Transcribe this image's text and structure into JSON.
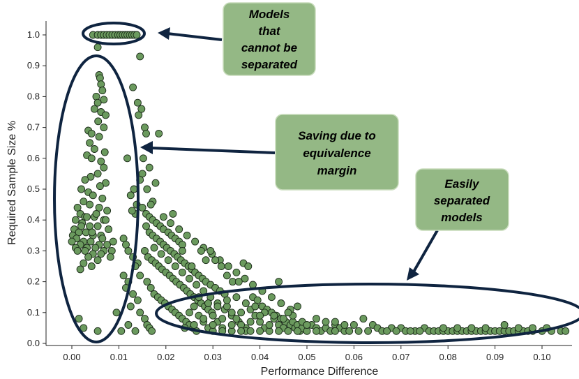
{
  "chart_data": {
    "type": "scatter",
    "title": "",
    "xlabel": "Performance Difference",
    "ylabel": "Required Sample Size %",
    "xlim": [
      -0.005,
      0.106
    ],
    "ylim": [
      -0.005,
      1.04
    ],
    "x_ticks": [
      "0.00",
      "0.01",
      "0.02",
      "0.03",
      "0.04",
      "0.05",
      "0.06",
      "0.07",
      "0.08",
      "0.09",
      "0.10"
    ],
    "y_ticks": [
      "0.0",
      "0.1",
      "0.2",
      "0.3",
      "0.4",
      "0.5",
      "0.6",
      "0.7",
      "0.8",
      "0.9",
      "1.0"
    ],
    "grid": false,
    "marker_color": "#6b9a5e",
    "marker_edge_color": "#1a2a18",
    "points": [
      [
        0.0045,
        1.0
      ],
      [
        0.0055,
        1.0
      ],
      [
        0.0062,
        1.0
      ],
      [
        0.0068,
        1.0
      ],
      [
        0.0074,
        1.0
      ],
      [
        0.008,
        1.0
      ],
      [
        0.0086,
        1.0
      ],
      [
        0.0092,
        1.0
      ],
      [
        0.0098,
        1.0
      ],
      [
        0.0103,
        1.0
      ],
      [
        0.0108,
        1.0
      ],
      [
        0.0113,
        1.0
      ],
      [
        0.0118,
        1.0
      ],
      [
        0.0123,
        1.0
      ],
      [
        0.0128,
        1.0
      ],
      [
        0.0133,
        1.0
      ],
      [
        0.0138,
        1.0
      ],
      [
        0.0055,
        0.96
      ],
      [
        0.0145,
        0.93
      ],
      [
        0.0058,
        0.87
      ],
      [
        0.006,
        0.86
      ],
      [
        0.0062,
        0.84
      ],
      [
        0.0065,
        0.82
      ],
      [
        0.0052,
        0.8
      ],
      [
        0.0068,
        0.79
      ],
      [
        0.0055,
        0.78
      ],
      [
        0.0048,
        0.76
      ],
      [
        0.0062,
        0.75
      ],
      [
        0.0072,
        0.74
      ],
      [
        0.0056,
        0.72
      ],
      [
        0.0068,
        0.7
      ],
      [
        0.0035,
        0.69
      ],
      [
        0.0042,
        0.68
      ],
      [
        0.0058,
        0.67
      ],
      [
        0.0038,
        0.65
      ],
      [
        0.0048,
        0.63
      ],
      [
        0.007,
        0.62
      ],
      [
        0.0032,
        0.61
      ],
      [
        0.0042,
        0.6
      ],
      [
        0.0062,
        0.59
      ],
      [
        0.0068,
        0.57
      ],
      [
        0.0055,
        0.55
      ],
      [
        0.004,
        0.54
      ],
      [
        0.0028,
        0.53
      ],
      [
        0.0072,
        0.52
      ],
      [
        0.006,
        0.51
      ],
      [
        0.002,
        0.5
      ],
      [
        0.0035,
        0.49
      ],
      [
        0.0045,
        0.48
      ],
      [
        0.0065,
        0.47
      ],
      [
        0.0025,
        0.46
      ],
      [
        0.0038,
        0.45
      ],
      [
        0.0058,
        0.44
      ],
      [
        0.0075,
        0.43
      ],
      [
        0.0012,
        0.44
      ],
      [
        0.0018,
        0.42
      ],
      [
        0.0028,
        0.41
      ],
      [
        0.0048,
        0.41
      ],
      [
        0.0068,
        0.4
      ],
      [
        0.0008,
        0.4
      ],
      [
        0.0022,
        0.39
      ],
      [
        0.0038,
        0.38
      ],
      [
        0.0055,
        0.38
      ],
      [
        0.0078,
        0.37
      ],
      [
        0.0005,
        0.37
      ],
      [
        0.0015,
        0.36
      ],
      [
        0.003,
        0.36
      ],
      [
        0.0045,
        0.35
      ],
      [
        0.0062,
        0.35
      ],
      [
        0.0002,
        0.35
      ],
      [
        0.001,
        0.34
      ],
      [
        0.0025,
        0.33
      ],
      [
        0.004,
        0.33
      ],
      [
        0.0058,
        0.32
      ],
      [
        0.0075,
        0.32
      ],
      [
        0.0,
        0.33
      ],
      [
        0.0018,
        0.32
      ],
      [
        0.0032,
        0.31
      ],
      [
        0.005,
        0.31
      ],
      [
        0.0068,
        0.3
      ],
      [
        0.0085,
        0.3
      ],
      [
        0.0008,
        0.31
      ],
      [
        0.0028,
        0.3
      ],
      [
        0.0045,
        0.29
      ],
      [
        0.0062,
        0.29
      ],
      [
        0.0082,
        0.28
      ],
      [
        0.0035,
        0.28
      ],
      [
        0.0055,
        0.27
      ],
      [
        0.0025,
        0.26
      ],
      [
        0.0042,
        0.25
      ],
      [
        0.0018,
        0.24
      ],
      [
        0.0032,
        0.41
      ],
      [
        0.0052,
        0.42
      ],
      [
        0.0072,
        0.4
      ],
      [
        0.002,
        0.38
      ],
      [
        0.0043,
        0.36
      ],
      [
        0.0065,
        0.34
      ],
      [
        0.0088,
        0.33
      ],
      [
        0.0012,
        0.3
      ],
      [
        0.0015,
        0.08
      ],
      [
        0.0025,
        0.05
      ],
      [
        0.0055,
        0.04
      ],
      [
        0.0095,
        0.1
      ],
      [
        0.012,
        0.06
      ],
      [
        0.0105,
        0.04
      ],
      [
        0.0118,
        0.6
      ],
      [
        0.0125,
        0.48
      ],
      [
        0.0135,
        0.42
      ],
      [
        0.0142,
        0.74
      ],
      [
        0.0148,
        0.76
      ],
      [
        0.013,
        0.83
      ],
      [
        0.014,
        0.78
      ],
      [
        0.0155,
        0.7
      ],
      [
        0.0158,
        0.68
      ],
      [
        0.0152,
        0.6
      ],
      [
        0.0165,
        0.57
      ],
      [
        0.015,
        0.55
      ],
      [
        0.0145,
        0.53
      ],
      [
        0.016,
        0.5
      ],
      [
        0.0132,
        0.5
      ],
      [
        0.0172,
        0.46
      ],
      [
        0.0138,
        0.45
      ],
      [
        0.0128,
        0.43
      ],
      [
        0.0185,
        0.68
      ],
      [
        0.0178,
        0.52
      ],
      [
        0.0168,
        0.45
      ],
      [
        0.011,
        0.34
      ],
      [
        0.0115,
        0.32
      ],
      [
        0.012,
        0.3
      ],
      [
        0.013,
        0.28
      ],
      [
        0.014,
        0.26
      ],
      [
        0.0135,
        0.25
      ],
      [
        0.0145,
        0.22
      ],
      [
        0.011,
        0.22
      ],
      [
        0.012,
        0.2
      ],
      [
        0.0115,
        0.18
      ],
      [
        0.013,
        0.16
      ],
      [
        0.014,
        0.14
      ],
      [
        0.0125,
        0.12
      ],
      [
        0.0145,
        0.1
      ],
      [
        0.0155,
        0.08
      ],
      [
        0.016,
        0.06
      ],
      [
        0.0165,
        0.05
      ],
      [
        0.017,
        0.04
      ],
      [
        0.0135,
        0.04
      ],
      [
        0.015,
        0.44
      ],
      [
        0.0158,
        0.42
      ],
      [
        0.0165,
        0.41
      ],
      [
        0.0172,
        0.4
      ],
      [
        0.018,
        0.39
      ],
      [
        0.0188,
        0.38
      ],
      [
        0.0195,
        0.37
      ],
      [
        0.0205,
        0.36
      ],
      [
        0.0212,
        0.35
      ],
      [
        0.022,
        0.34
      ],
      [
        0.0228,
        0.33
      ],
      [
        0.0235,
        0.32
      ],
      [
        0.0158,
        0.38
      ],
      [
        0.0165,
        0.36
      ],
      [
        0.0172,
        0.35
      ],
      [
        0.018,
        0.34
      ],
      [
        0.0188,
        0.33
      ],
      [
        0.0195,
        0.32
      ],
      [
        0.0202,
        0.31
      ],
      [
        0.021,
        0.3
      ],
      [
        0.0218,
        0.29
      ],
      [
        0.0225,
        0.28
      ],
      [
        0.0232,
        0.27
      ],
      [
        0.024,
        0.26
      ],
      [
        0.0248,
        0.25
      ],
      [
        0.0255,
        0.24
      ],
      [
        0.0262,
        0.23
      ],
      [
        0.027,
        0.22
      ],
      [
        0.0278,
        0.21
      ],
      [
        0.0285,
        0.2
      ],
      [
        0.0295,
        0.19
      ],
      [
        0.0305,
        0.18
      ],
      [
        0.0315,
        0.17
      ],
      [
        0.0325,
        0.16
      ],
      [
        0.0155,
        0.3
      ],
      [
        0.0162,
        0.28
      ],
      [
        0.017,
        0.27
      ],
      [
        0.0178,
        0.26
      ],
      [
        0.0185,
        0.25
      ],
      [
        0.0192,
        0.24
      ],
      [
        0.02,
        0.23
      ],
      [
        0.0208,
        0.22
      ],
      [
        0.0215,
        0.21
      ],
      [
        0.0222,
        0.2
      ],
      [
        0.023,
        0.19
      ],
      [
        0.0238,
        0.18
      ],
      [
        0.0245,
        0.17
      ],
      [
        0.0252,
        0.16
      ],
      [
        0.026,
        0.15
      ],
      [
        0.0268,
        0.14
      ],
      [
        0.0275,
        0.13
      ],
      [
        0.0283,
        0.12
      ],
      [
        0.029,
        0.11
      ],
      [
        0.0298,
        0.1
      ],
      [
        0.016,
        0.2
      ],
      [
        0.0168,
        0.18
      ],
      [
        0.0175,
        0.16
      ],
      [
        0.0183,
        0.15
      ],
      [
        0.019,
        0.14
      ],
      [
        0.0198,
        0.13
      ],
      [
        0.0205,
        0.12
      ],
      [
        0.0213,
        0.11
      ],
      [
        0.022,
        0.1
      ],
      [
        0.0228,
        0.09
      ],
      [
        0.0235,
        0.08
      ],
      [
        0.0243,
        0.07
      ],
      [
        0.025,
        0.06
      ],
      [
        0.0258,
        0.05
      ],
      [
        0.0265,
        0.04
      ],
      [
        0.0175,
        0.31
      ],
      [
        0.019,
        0.29
      ],
      [
        0.0205,
        0.27
      ],
      [
        0.022,
        0.25
      ],
      [
        0.0235,
        0.23
      ],
      [
        0.025,
        0.21
      ],
      [
        0.0265,
        0.19
      ],
      [
        0.028,
        0.17
      ],
      [
        0.0295,
        0.15
      ],
      [
        0.031,
        0.13
      ],
      [
        0.0325,
        0.11
      ],
      [
        0.034,
        0.09
      ],
      [
        0.0355,
        0.07
      ],
      [
        0.037,
        0.05
      ],
      [
        0.0195,
        0.41
      ],
      [
        0.021,
        0.39
      ],
      [
        0.0228,
        0.37
      ],
      [
        0.0245,
        0.35
      ],
      [
        0.0262,
        0.33
      ],
      [
        0.028,
        0.31
      ],
      [
        0.0298,
        0.29
      ],
      [
        0.0315,
        0.27
      ],
      [
        0.0333,
        0.25
      ],
      [
        0.035,
        0.23
      ],
      [
        0.0368,
        0.21
      ],
      [
        0.0385,
        0.19
      ],
      [
        0.0405,
        0.17
      ],
      [
        0.0425,
        0.15
      ],
      [
        0.0445,
        0.13
      ],
      [
        0.0465,
        0.11
      ],
      [
        0.0215,
        0.42
      ],
      [
        0.0235,
        0.3
      ],
      [
        0.0255,
        0.25
      ],
      [
        0.0275,
        0.3
      ],
      [
        0.0285,
        0.27
      ],
      [
        0.0295,
        0.3
      ],
      [
        0.0305,
        0.27
      ],
      [
        0.0318,
        0.25
      ],
      [
        0.033,
        0.22
      ],
      [
        0.0342,
        0.2
      ],
      [
        0.0355,
        0.2
      ],
      [
        0.0365,
        0.26
      ],
      [
        0.0375,
        0.25
      ],
      [
        0.0385,
        0.15
      ],
      [
        0.0395,
        0.14
      ],
      [
        0.0405,
        0.12
      ],
      [
        0.0415,
        0.11
      ],
      [
        0.0425,
        0.1
      ],
      [
        0.0435,
        0.09
      ],
      [
        0.0445,
        0.08
      ],
      [
        0.0455,
        0.07
      ],
      [
        0.0465,
        0.06
      ],
      [
        0.0475,
        0.05
      ],
      [
        0.0485,
        0.04
      ],
      [
        0.025,
        0.1
      ],
      [
        0.026,
        0.12
      ],
      [
        0.027,
        0.09
      ],
      [
        0.028,
        0.07
      ],
      [
        0.029,
        0.05
      ],
      [
        0.03,
        0.09
      ],
      [
        0.031,
        0.07
      ],
      [
        0.032,
        0.05
      ],
      [
        0.033,
        0.12
      ],
      [
        0.034,
        0.1
      ],
      [
        0.035,
        0.08
      ],
      [
        0.036,
        0.06
      ],
      [
        0.037,
        0.04
      ],
      [
        0.038,
        0.11
      ],
      [
        0.039,
        0.09
      ],
      [
        0.04,
        0.07
      ],
      [
        0.041,
        0.05
      ],
      [
        0.042,
        0.04
      ],
      [
        0.043,
        0.08
      ],
      [
        0.044,
        0.06
      ],
      [
        0.045,
        0.05
      ],
      [
        0.046,
        0.04
      ],
      [
        0.047,
        0.07
      ],
      [
        0.048,
        0.06
      ],
      [
        0.049,
        0.05
      ],
      [
        0.05,
        0.04
      ],
      [
        0.051,
        0.06
      ],
      [
        0.052,
        0.05
      ],
      [
        0.053,
        0.04
      ],
      [
        0.054,
        0.05
      ],
      [
        0.055,
        0.04
      ],
      [
        0.056,
        0.06
      ],
      [
        0.057,
        0.05
      ],
      [
        0.058,
        0.04
      ],
      [
        0.044,
        0.2
      ],
      [
        0.048,
        0.12
      ],
      [
        0.052,
        0.08
      ],
      [
        0.056,
        0.07
      ],
      [
        0.06,
        0.06
      ],
      [
        0.062,
        0.08
      ],
      [
        0.064,
        0.06
      ],
      [
        0.065,
        0.05
      ],
      [
        0.068,
        0.05
      ],
      [
        0.07,
        0.05
      ],
      [
        0.073,
        0.04
      ],
      [
        0.075,
        0.05
      ],
      [
        0.03,
        0.04
      ],
      [
        0.032,
        0.04
      ],
      [
        0.034,
        0.04
      ],
      [
        0.036,
        0.04
      ],
      [
        0.038,
        0.04
      ],
      [
        0.04,
        0.04
      ],
      [
        0.044,
        0.04
      ],
      [
        0.048,
        0.04
      ],
      [
        0.052,
        0.04
      ],
      [
        0.056,
        0.04
      ],
      [
        0.059,
        0.04
      ],
      [
        0.061,
        0.04
      ],
      [
        0.063,
        0.04
      ],
      [
        0.066,
        0.04
      ],
      [
        0.067,
        0.04
      ],
      [
        0.069,
        0.04
      ],
      [
        0.071,
        0.04
      ],
      [
        0.072,
        0.04
      ],
      [
        0.074,
        0.04
      ],
      [
        0.076,
        0.04
      ],
      [
        0.077,
        0.04
      ],
      [
        0.078,
        0.04
      ],
      [
        0.079,
        0.04
      ],
      [
        0.08,
        0.04
      ],
      [
        0.081,
        0.04
      ],
      [
        0.082,
        0.04
      ],
      [
        0.083,
        0.04
      ],
      [
        0.084,
        0.04
      ],
      [
        0.085,
        0.04
      ],
      [
        0.086,
        0.04
      ],
      [
        0.087,
        0.04
      ],
      [
        0.088,
        0.04
      ],
      [
        0.089,
        0.04
      ],
      [
        0.09,
        0.04
      ],
      [
        0.091,
        0.04
      ],
      [
        0.092,
        0.04
      ],
      [
        0.093,
        0.04
      ],
      [
        0.094,
        0.04
      ],
      [
        0.095,
        0.04
      ],
      [
        0.096,
        0.04
      ],
      [
        0.097,
        0.04
      ],
      [
        0.098,
        0.04
      ],
      [
        0.1,
        0.04
      ],
      [
        0.102,
        0.04
      ],
      [
        0.104,
        0.04
      ],
      [
        0.105,
        0.04
      ],
      [
        0.079,
        0.05
      ],
      [
        0.082,
        0.05
      ],
      [
        0.085,
        0.05
      ],
      [
        0.088,
        0.05
      ],
      [
        0.092,
        0.06
      ],
      [
        0.095,
        0.05
      ],
      [
        0.098,
        0.05
      ],
      [
        0.101,
        0.05
      ],
      [
        0.027,
        0.15
      ],
      [
        0.029,
        0.13
      ],
      [
        0.031,
        0.12
      ],
      [
        0.033,
        0.14
      ],
      [
        0.035,
        0.15
      ],
      [
        0.037,
        0.13
      ],
      [
        0.039,
        0.12
      ],
      [
        0.041,
        0.1
      ],
      [
        0.043,
        0.09
      ],
      [
        0.045,
        0.08
      ],
      [
        0.047,
        0.09
      ],
      [
        0.049,
        0.07
      ],
      [
        0.024,
        0.05
      ],
      [
        0.026,
        0.06
      ],
      [
        0.028,
        0.08
      ],
      [
        0.03,
        0.06
      ],
      [
        0.032,
        0.08
      ],
      [
        0.034,
        0.06
      ],
      [
        0.036,
        0.1
      ],
      [
        0.038,
        0.07
      ],
      [
        0.04,
        0.09
      ],
      [
        0.042,
        0.06
      ],
      [
        0.046,
        0.1
      ],
      [
        0.05,
        0.06
      ],
      [
        0.054,
        0.07
      ],
      [
        0.058,
        0.06
      ]
    ]
  },
  "annotations": [
    {
      "id": "cannot-separate",
      "lines": [
        "Models",
        "that",
        "cannot be",
        "separated"
      ]
    },
    {
      "id": "equivalence",
      "lines": [
        "Saving due to",
        "equivalence",
        "margin"
      ]
    },
    {
      "id": "easily",
      "lines": [
        "Easily",
        "separated",
        "models"
      ]
    }
  ],
  "colors": {
    "callout_fill": "#94b885",
    "callout_stroke": "#c8dcbc",
    "ellipse_stroke": "#0f2440",
    "axis": "#222222"
  }
}
